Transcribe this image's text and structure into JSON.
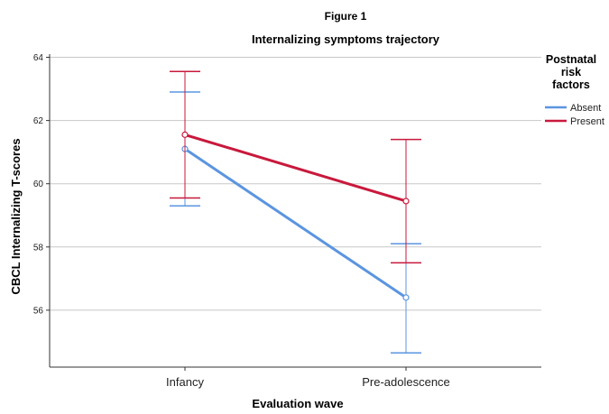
{
  "chart_data": {
    "type": "line",
    "figure_label": "Figure 1",
    "title": "Internalizing symptoms trajectory",
    "xlabel": "Evaluation wave",
    "ylabel": "CBCL Internalizing T-scores",
    "categories": [
      "Infancy",
      "Pre-adolescence"
    ],
    "ylim": [
      54.2,
      64.1
    ],
    "yticks": [
      56,
      58,
      60,
      62,
      64
    ],
    "grid": true,
    "legend": {
      "title_lines": [
        "Postnatal",
        "risk",
        "factors"
      ],
      "position": "right"
    },
    "series": [
      {
        "name": "Absent",
        "color": "#5b95e0",
        "values": [
          61.1,
          56.4
        ],
        "error_lower": [
          59.3,
          54.65
        ],
        "error_upper": [
          62.9,
          58.1
        ]
      },
      {
        "name": "Present",
        "color": "#c8193c",
        "values": [
          61.55,
          59.45
        ],
        "error_lower": [
          59.55,
          57.5
        ],
        "error_upper": [
          63.55,
          61.4
        ]
      }
    ]
  }
}
